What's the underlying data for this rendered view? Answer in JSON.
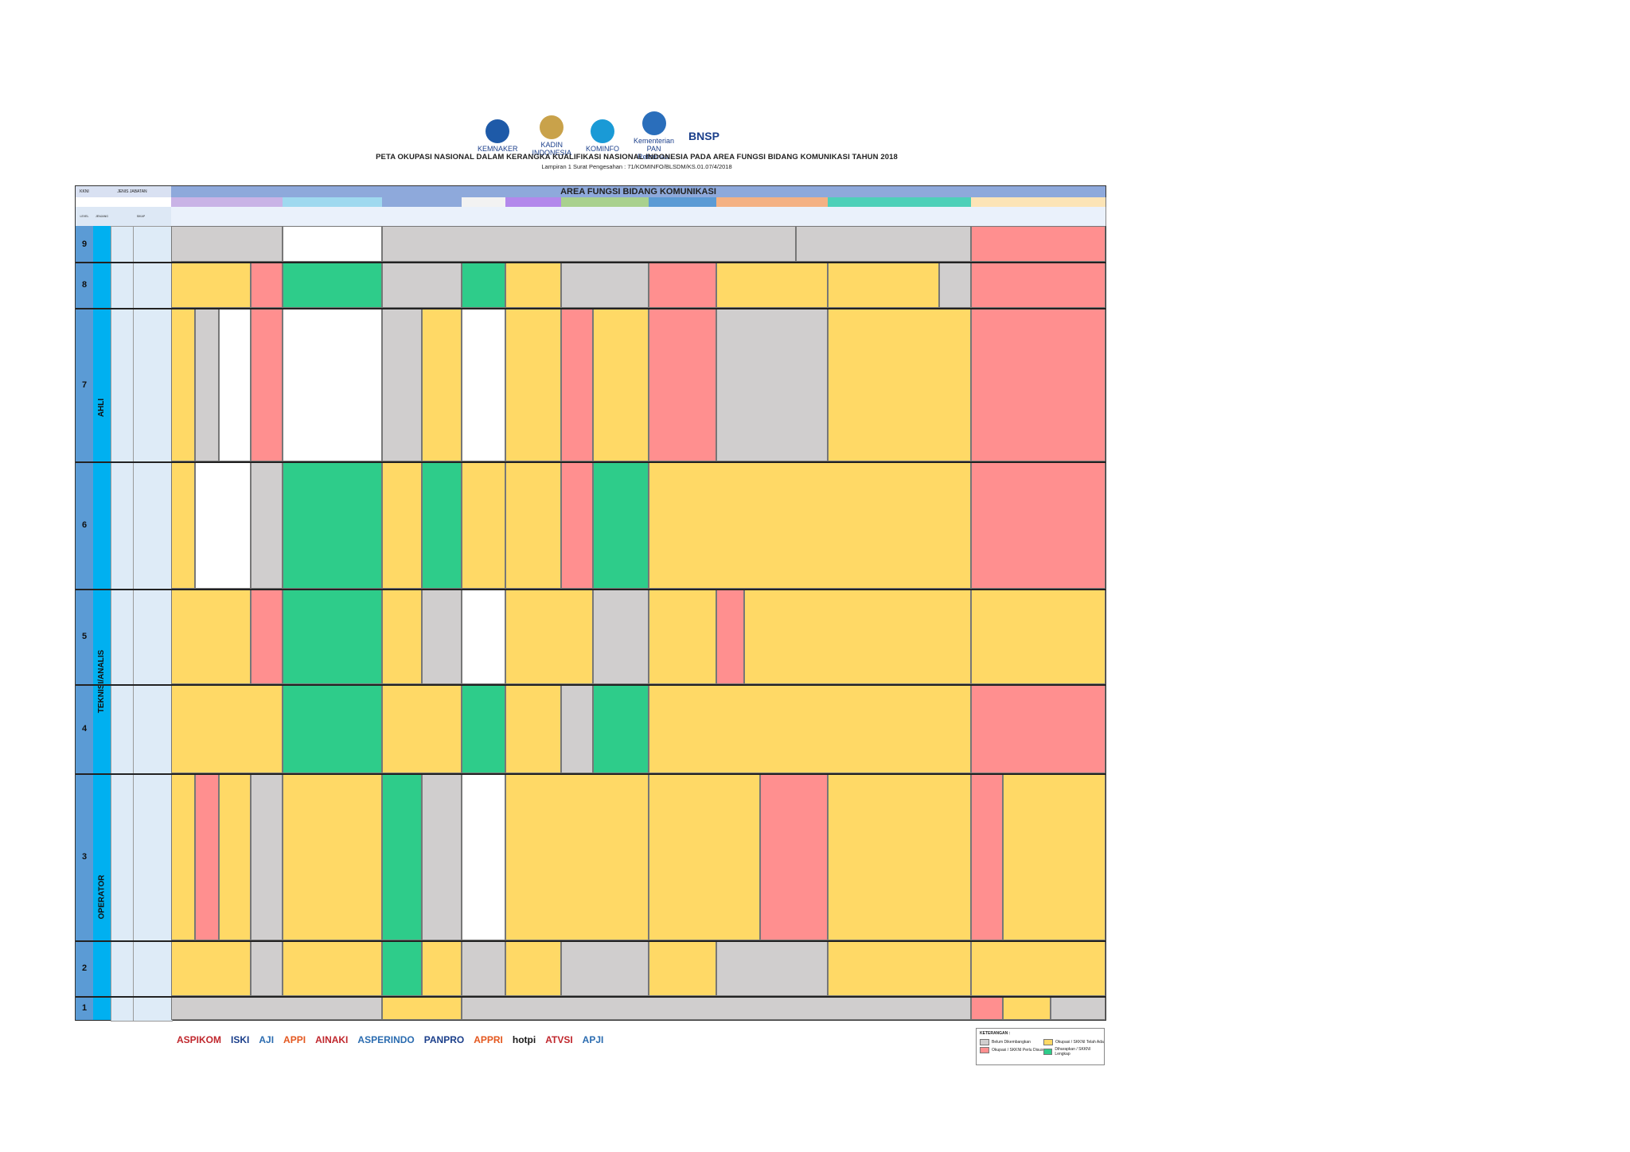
{
  "logos": [
    {
      "name": "KEMNAKER",
      "color": "#1e5aa8"
    },
    {
      "name": "KADIN INDONESIA",
      "color": "#c9a24a"
    },
    {
      "name": "KOMINFO",
      "color": "#1a9ad6"
    },
    {
      "name": "Kementerian PAN Reformasi",
      "color": "#2a6ebb"
    },
    {
      "name": "BNSP",
      "color": "#c0272d"
    }
  ],
  "title": "PETA OKUPASI NASIONAL DALAM KERANGKA KUALIFIKASI NASIONAL INDONESIA PADA AREA FUNGSI BIDANG KOMUNIKASI TAHUN 2018",
  "subtitle": "Lampiran 1 Surat Pengesahan : 71/KOMINFO/BLSDM/KS.01.07/4/2018",
  "header": {
    "area": "AREA FUNGSI BIDANG KOMUNIKASI",
    "level": "LEVEL",
    "jenjang": "JENJANG",
    "kkni": "KKNI",
    "sikap": "SIKAP",
    "jenis_jabatan": "JENIS JABATAN"
  },
  "levels": [
    "9",
    "8",
    "7",
    "6",
    "5",
    "4",
    "3",
    "2",
    "1"
  ],
  "bands": [
    "AHLI",
    "TEKNISI/ANALIS",
    "OPERATOR"
  ],
  "legend": {
    "title": "KETERANGAN :",
    "items": [
      "Belum Dikembangkan",
      "Okupasi / SKKNI Perlu Disusun",
      "Okupasi / SKKNI Telah Ada",
      "Diharapkan / SKKNI Lengkap"
    ],
    "colors": [
      "#d0cece",
      "#ff8f8f",
      "#ffd966",
      "#2ecc8a"
    ]
  },
  "sponsors": [
    "ASPIKOM",
    "ISKI",
    "AJI",
    "APPI",
    "AINAKI",
    "ASPERINDO",
    "PANPRO",
    "APPRI",
    "hotpi",
    "ATVSI",
    "APJI"
  ]
}
